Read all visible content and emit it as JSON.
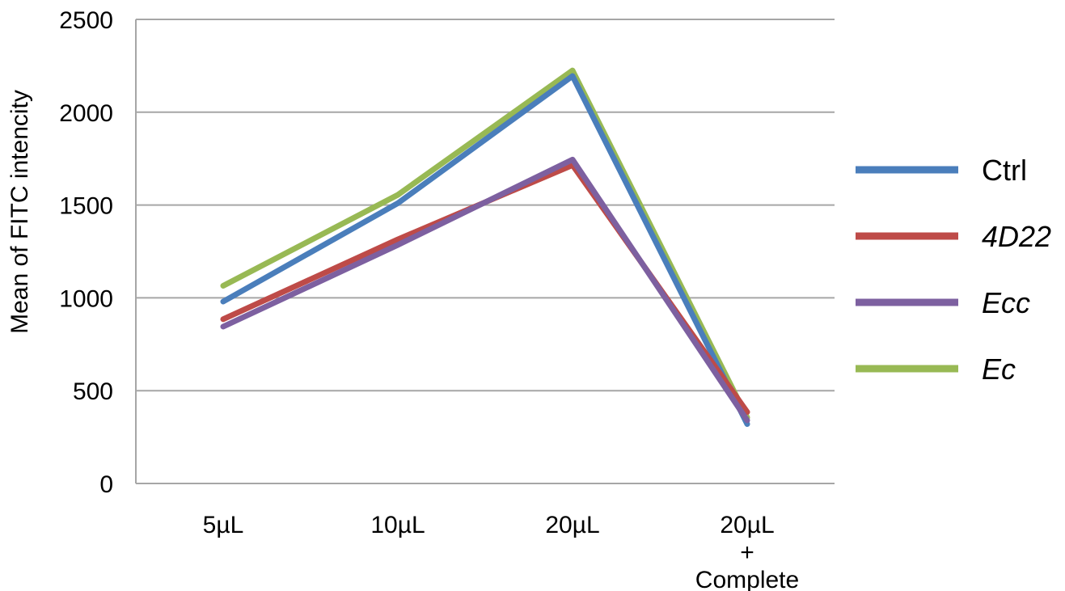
{
  "chart_data": {
    "type": "line",
    "title": "",
    "xlabel": "",
    "ylabel": "Mean of FITC intencity",
    "ylim": [
      0,
      2500
    ],
    "yticks": [
      0,
      500,
      1000,
      1500,
      2000,
      2500
    ],
    "grid": true,
    "legend_position": "right",
    "categories": [
      [
        "5µL"
      ],
      [
        "10µL"
      ],
      [
        "20µL"
      ],
      [
        "20µL",
        "+",
        "Complete"
      ]
    ],
    "series": [
      {
        "name": "Ctrl",
        "italic": false,
        "color": "#4a7ebb",
        "values": [
          980,
          1510,
          2195,
          320
        ]
      },
      {
        "name": "4D22",
        "italic": true,
        "color": "#be4b48",
        "values": [
          885,
          1315,
          1715,
          385
        ]
      },
      {
        "name": "Ecc",
        "italic": true,
        "color": "#7d60a0",
        "values": [
          845,
          1285,
          1745,
          340
        ]
      },
      {
        "name": "Ec",
        "italic": true,
        "color": "#98b954",
        "values": [
          1065,
          1555,
          2225,
          355
        ]
      }
    ],
    "draw_order": [
      3,
      0,
      1,
      2
    ]
  }
}
